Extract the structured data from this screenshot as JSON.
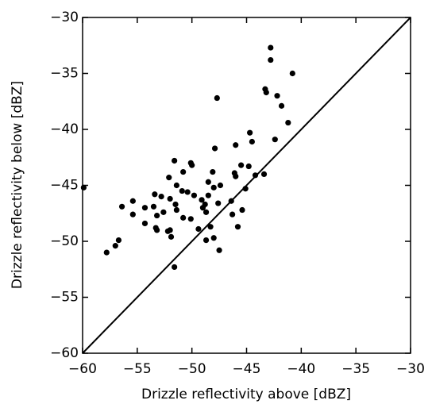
{
  "chart_data": {
    "type": "scatter",
    "xlabel": "Drizzle reflectivity above [dBZ]",
    "ylabel": "Drizzle reflectivity below [dBZ]",
    "xlim": [
      -60,
      -30
    ],
    "ylim": [
      -60,
      -30
    ],
    "xticks": [
      {
        "value": -60,
        "label": "−60"
      },
      {
        "value": -55,
        "label": "−55"
      },
      {
        "value": -50,
        "label": "−50"
      },
      {
        "value": -45,
        "label": "−45"
      },
      {
        "value": -40,
        "label": "−40"
      },
      {
        "value": -35,
        "label": "−35"
      },
      {
        "value": -30,
        "label": "−30"
      }
    ],
    "yticks": [
      {
        "value": -60,
        "label": "−60"
      },
      {
        "value": -55,
        "label": "−55"
      },
      {
        "value": -50,
        "label": "−50"
      },
      {
        "value": -45,
        "label": "−45"
      },
      {
        "value": -40,
        "label": "−40"
      },
      {
        "value": -35,
        "label": "−35"
      },
      {
        "value": -30,
        "label": "−30"
      }
    ],
    "color": "#000000",
    "x": [
      -59.9,
      -57.8,
      -57.0,
      -56.7,
      -56.4,
      -55.4,
      -55.4,
      -54.3,
      -54.3,
      -53.5,
      -53.4,
      -53.3,
      -53.2,
      -53.2,
      -52.8,
      -52.6,
      -52.2,
      -52.0,
      -51.9,
      -52.0,
      -52.1,
      -51.6,
      -51.5,
      -51.4,
      -51.4,
      -51.6,
      -50.8,
      -50.9,
      -50.8,
      -50.4,
      -50.1,
      -50.0,
      -50.1,
      -49.8,
      -49.4,
      -49.1,
      -49.0,
      -48.8,
      -48.7,
      -48.7,
      -48.5,
      -48.5,
      -48.3,
      -48.1,
      -48.0,
      -48.0,
      -47.9,
      -47.7,
      -47.6,
      -47.5,
      -47.4,
      -46.4,
      -46.3,
      -46.1,
      -46.0,
      -46.0,
      -45.8,
      -45.5,
      -45.4,
      -45.1,
      -44.8,
      -44.7,
      -44.5,
      -44.2,
      -43.4,
      -43.3,
      -43.2,
      -42.8,
      -42.8,
      -42.4,
      -42.2,
      -41.8,
      -41.2,
      -40.8
    ],
    "y": [
      -45.2,
      -51.0,
      -50.4,
      -49.9,
      -46.9,
      -46.4,
      -47.6,
      -47.0,
      -48.4,
      -46.9,
      -45.8,
      -48.8,
      -47.7,
      -49.0,
      -46.0,
      -47.4,
      -49.1,
      -49.0,
      -49.6,
      -46.2,
      -44.3,
      -42.8,
      -46.7,
      -47.2,
      -45.0,
      -52.3,
      -43.8,
      -45.5,
      -47.9,
      -45.6,
      -43.0,
      -43.2,
      -48.0,
      -45.9,
      -48.9,
      -46.3,
      -47.0,
      -46.7,
      -47.4,
      -49.9,
      -45.9,
      -44.7,
      -48.7,
      -43.8,
      -45.2,
      -49.7,
      -41.7,
      -37.2,
      -46.6,
      -50.8,
      -45.0,
      -46.4,
      -47.6,
      -43.9,
      -44.2,
      -41.4,
      -48.7,
      -43.2,
      -47.2,
      -45.3,
      -43.3,
      -40.3,
      -41.1,
      -44.1,
      -44.0,
      -36.4,
      -36.7,
      -33.8,
      -32.7,
      -40.9,
      -37.0,
      -37.9,
      -39.4,
      -35.0
    ]
  }
}
